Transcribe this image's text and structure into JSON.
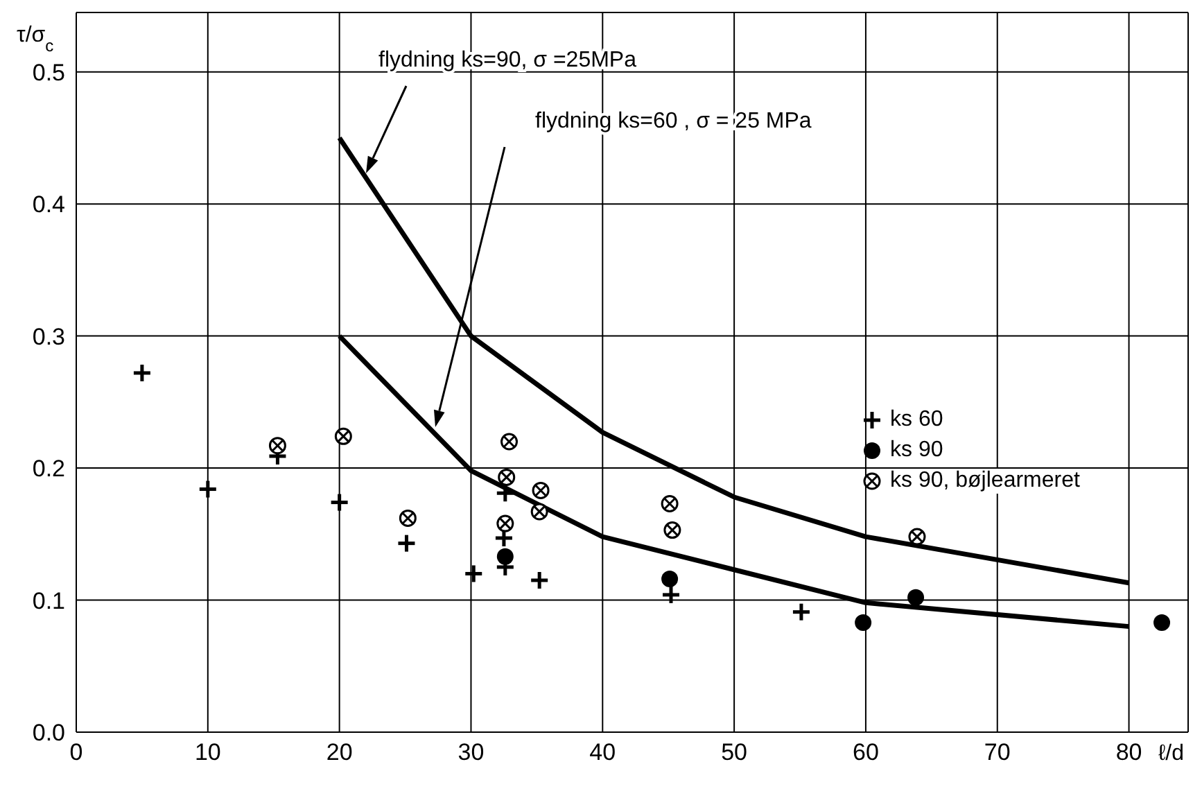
{
  "chart_data": {
    "type": "scatter",
    "xlabel": "ℓ/d",
    "ylabel": "τ/σ$_{c}$",
    "xlim": [
      0,
      84.5
    ],
    "ylim": [
      0,
      0.545
    ],
    "xticks": [
      0,
      10,
      20,
      30,
      40,
      50,
      60,
      70,
      80
    ],
    "yticks": [
      {
        "value": 0,
        "label": "0.0"
      },
      0.1,
      0.2,
      0.3,
      0.4,
      0.5
    ],
    "grid": true,
    "legend": "right",
    "annotations": [
      "flydning ks=90, σ =25MPa",
      "flydning ks=60 , σ = 25 MPa"
    ],
    "series": [
      {
        "type": "line",
        "color": "#000000",
        "marker": "none",
        "x": [
          20,
          30,
          40,
          50,
          60,
          80
        ],
        "values": [
          0.45,
          0.3,
          0.227,
          0.178,
          0.148,
          0.113
        ]
      },
      {
        "type": "line",
        "color": "#000000",
        "marker": "none",
        "x": [
          20,
          30,
          40,
          50,
          60,
          80
        ],
        "values": [
          0.3,
          0.198,
          0.148,
          0.123,
          0.098,
          0.08
        ]
      },
      {
        "name": "ks 60",
        "color": "#000000",
        "marker": "cross",
        "x": [
          5,
          10,
          15.3,
          20,
          25.1,
          30.2,
          32.6,
          32.5,
          32.6,
          35.2,
          45.2,
          55.1
        ],
        "values": [
          0.272,
          0.184,
          0.209,
          0.174,
          0.143,
          0.12,
          0.181,
          0.147,
          0.125,
          0.115,
          0.104,
          0.091
        ]
      },
      {
        "name": "ks 90",
        "color": "#000000",
        "marker": "circle",
        "x": [
          32.6,
          45.1,
          59.8,
          63.8,
          82.5
        ],
        "values": [
          0.133,
          0.116,
          0.083,
          0.102,
          0.083
        ]
      },
      {
        "name": "ks 90, bøjlearmeret",
        "color": "#000000",
        "x": [
          15.3,
          20.3,
          25.2,
          32.9,
          32.7,
          32.6,
          35.3,
          35.2,
          45.1,
          45.3,
          63.9
        ],
        "values": [
          0.217,
          0.224,
          0.162,
          0.22,
          0.193,
          0.158,
          0.183,
          0.167,
          0.173,
          0.153,
          0.148
        ]
      }
    ]
  }
}
